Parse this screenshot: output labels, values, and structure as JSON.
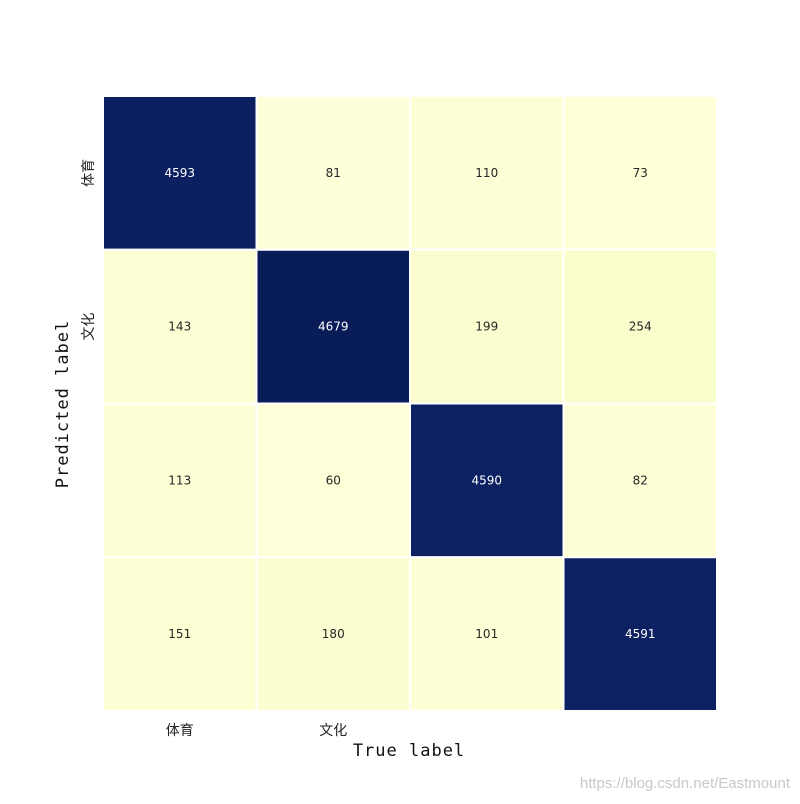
{
  "chart_data": {
    "type": "heatmap",
    "title": "",
    "xlabel": "True label",
    "ylabel": "Predicted label",
    "x_tick_labels": [
      "体育",
      "文化",
      "",
      ""
    ],
    "y_tick_labels": [
      "体育",
      "文化",
      "",
      ""
    ],
    "matrix": [
      [
        4593,
        81,
        110,
        73
      ],
      [
        143,
        4679,
        199,
        254
      ],
      [
        113,
        60,
        4590,
        82
      ],
      [
        151,
        180,
        101,
        4591
      ]
    ],
    "colormap": "YlGnBu",
    "color_low": "#ffffd9",
    "color_high": "#081d58",
    "cell_border_color": "#ffffff",
    "annotate": true,
    "colorbar": false
  },
  "watermark": "https://blog.csdn.net/Eastmount"
}
